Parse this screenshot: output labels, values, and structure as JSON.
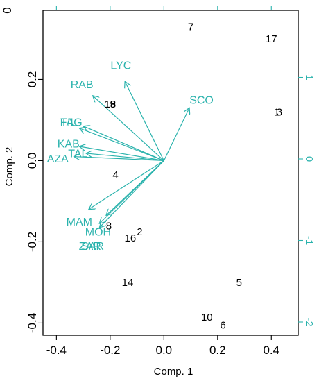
{
  "chart_data": {
    "type": "scatter",
    "title": "",
    "xlabel": "Comp. 1",
    "ylabel": "Comp. 2",
    "xlim": [
      -0.45,
      0.5
    ],
    "ylim": [
      -0.43,
      0.37
    ],
    "x_ticks": [
      -0.4,
      -0.2,
      0.0,
      0.2,
      0.4
    ],
    "x_tick_labels": [
      "-0.4",
      "-0.2",
      "0.0",
      "0.2",
      "0.4"
    ],
    "y_ticks": [
      -0.4,
      -0.2,
      0.0,
      0.2
    ],
    "y_tick_labels": [
      "-0.4",
      "-0.2",
      "0.0",
      "0.2"
    ],
    "secondary_y_ticks": [
      1,
      0,
      -1,
      -2
    ],
    "secondary_y_tick_labels": [
      "1",
      "0",
      "-1",
      "-2"
    ],
    "secondary_x_ticks": [
      -0.4,
      -0.2,
      0.0,
      0.2,
      0.4
    ],
    "top_tick_fragment": "0",
    "grid": false,
    "colors": {
      "observations": "#000000",
      "variables": "#2bb3ad"
    },
    "observations": [
      {
        "label": "7",
        "x": 0.1,
        "y": 0.33
      },
      {
        "label": "17",
        "x": 0.4,
        "y": 0.3
      },
      {
        "label": "3",
        "x": 0.43,
        "y": 0.12
      },
      {
        "label": "1",
        "x": 0.42,
        "y": 0.12
      },
      {
        "label": "18",
        "x": -0.2,
        "y": 0.14
      },
      {
        "label": "9",
        "x": -0.19,
        "y": 0.14
      },
      {
        "label": "4",
        "x": -0.18,
        "y": -0.035
      },
      {
        "label": "8",
        "x": -0.205,
        "y": -0.16
      },
      {
        "label": "2",
        "x": -0.09,
        "y": -0.175
      },
      {
        "label": "16",
        "x": -0.125,
        "y": -0.19
      },
      {
        "label": "14",
        "x": -0.135,
        "y": -0.3
      },
      {
        "label": "5",
        "x": 0.28,
        "y": -0.3
      },
      {
        "label": "10",
        "x": 0.16,
        "y": -0.385
      },
      {
        "label": "6",
        "x": 0.22,
        "y": -0.405
      }
    ],
    "variables": [
      {
        "name": "LYC",
        "x": -0.145,
        "y": 0.195,
        "label_x": -0.16,
        "label_y": 0.235
      },
      {
        "name": "RAB",
        "x": -0.265,
        "y": 0.16,
        "label_x": -0.305,
        "label_y": 0.188
      },
      {
        "name": "SCO",
        "x": 0.095,
        "y": 0.13,
        "label_x": 0.14,
        "label_y": 0.15
      },
      {
        "name": "FAG",
        "x": -0.3,
        "y": 0.085,
        "label_x": -0.345,
        "label_y": 0.095
      },
      {
        "name": "TIL",
        "x": -0.315,
        "y": 0.08,
        "label_x": -0.355,
        "label_y": 0.095
      },
      {
        "name": "KAB",
        "x": -0.315,
        "y": 0.035,
        "label_x": -0.355,
        "label_y": 0.042
      },
      {
        "name": "TAL",
        "x": -0.29,
        "y": 0.018,
        "label_x": -0.32,
        "label_y": 0.018
      },
      {
        "name": "AZA",
        "x": -0.335,
        "y": 0.01,
        "label_x": -0.395,
        "label_y": 0.005
      },
      {
        "name": "MAM",
        "x": -0.28,
        "y": -0.12,
        "label_x": -0.315,
        "label_y": -0.15
      },
      {
        "name": "MOH",
        "x": -0.215,
        "y": -0.135,
        "label_x": -0.245,
        "label_y": -0.175
      },
      {
        "name": "SAR",
        "x": -0.24,
        "y": -0.155,
        "label_x": -0.265,
        "label_y": -0.21
      },
      {
        "name": "ZAR",
        "x": -0.24,
        "y": -0.165,
        "label_x": -0.275,
        "label_y": -0.21
      }
    ]
  }
}
